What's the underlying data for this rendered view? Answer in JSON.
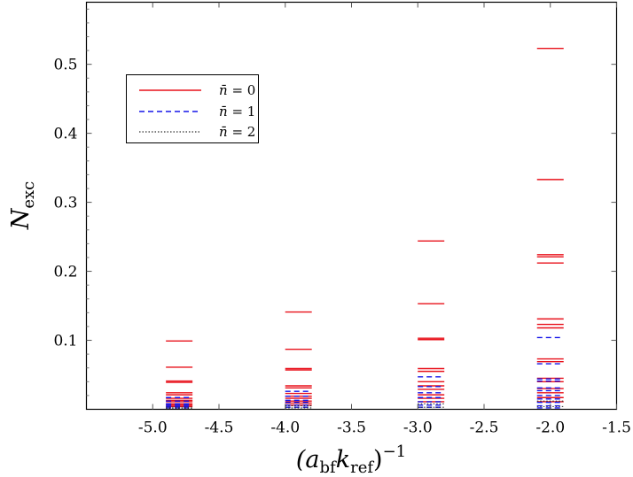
{
  "chart_data": {
    "type": "scatter",
    "xlabel_main": "(a",
    "xlabel_sub1": "bf",
    "xlabel_k": "k",
    "xlabel_sub2": "ref",
    "xlabel_close": ")",
    "xlabel_sup": "−1",
    "ylabel_main": "N",
    "ylabel_sub": "exc",
    "xlim": [
      -5.5,
      -1.5
    ],
    "ylim": [
      0,
      0.59
    ],
    "xticks": [
      {
        "value": -5.0,
        "label": "-5.0"
      },
      {
        "value": -4.5,
        "label": "-4.5"
      },
      {
        "value": -4.0,
        "label": "-4.0"
      },
      {
        "value": -3.5,
        "label": "-3.5"
      },
      {
        "value": -3.0,
        "label": "-3.0"
      },
      {
        "value": -2.5,
        "label": "-2.5"
      },
      {
        "value": -2.0,
        "label": "-2.0"
      },
      {
        "value": -1.5,
        "label": "-1.5"
      }
    ],
    "yticks": [
      {
        "value": 0.1,
        "label": "0.1"
      },
      {
        "value": 0.2,
        "label": "0.2"
      },
      {
        "value": 0.3,
        "label": "0.3"
      },
      {
        "value": 0.4,
        "label": "0.4"
      },
      {
        "value": 0.5,
        "label": "0.5"
      }
    ],
    "legend_position": "top-left",
    "marker": "horizontal dash",
    "series": [
      {
        "legend_prefix": "n̄",
        "legend_suffix": " = 0",
        "color": "#e8101a",
        "style": "solid",
        "points": [
          {
            "x": -4.8,
            "values": [
              0.099,
              0.061,
              0.041,
              0.039,
              0.024,
              0.021,
              0.016,
              0.013,
              0.011,
              0.008,
              0.006,
              0.004
            ]
          },
          {
            "x": -3.9,
            "values": [
              0.141,
              0.087,
              0.059,
              0.057,
              0.034,
              0.031,
              0.023,
              0.019,
              0.016,
              0.012,
              0.009,
              0.006
            ]
          },
          {
            "x": -2.9,
            "values": [
              0.244,
              0.153,
              0.103,
              0.101,
              0.059,
              0.055,
              0.04,
              0.034,
              0.029,
              0.021,
              0.016,
              0.011
            ]
          },
          {
            "x": -2.0,
            "values": [
              0.523,
              0.333,
              0.224,
              0.221,
              0.212,
              0.131,
              0.123,
              0.118,
              0.073,
              0.069,
              0.045,
              0.04,
              0.03,
              0.024,
              0.017,
              0.011
            ]
          }
        ]
      },
      {
        "legend_prefix": "n̄",
        "legend_suffix": " = 1",
        "color": "#1515e8",
        "style": "dashed",
        "points": [
          {
            "x": -4.8,
            "values": [
              0.017,
              0.012,
              0.008,
              0.006,
              0.004,
              0.002
            ]
          },
          {
            "x": -3.9,
            "values": [
              0.026,
              0.019,
              0.013,
              0.01,
              0.006,
              0.003
            ]
          },
          {
            "x": -2.9,
            "values": [
              0.047,
              0.033,
              0.024,
              0.017,
              0.011,
              0.006,
              0.003
            ]
          },
          {
            "x": -2.0,
            "values": [
              0.104,
              0.066,
              0.044,
              0.041,
              0.031,
              0.027,
              0.02,
              0.015,
              0.01,
              0.005,
              0.002
            ]
          }
        ]
      },
      {
        "legend_prefix": "n̄",
        "legend_suffix": " = 2",
        "color": "#333333",
        "style": "dotted",
        "points": [
          {
            "x": -4.8,
            "values": [
              0.003,
              0.001
            ]
          },
          {
            "x": -3.9,
            "values": [
              0.005,
              0.002
            ]
          },
          {
            "x": -2.9,
            "values": [
              0.008,
              0.003
            ]
          },
          {
            "x": -2.0,
            "values": [
              0.012,
              0.004
            ]
          }
        ]
      }
    ]
  }
}
